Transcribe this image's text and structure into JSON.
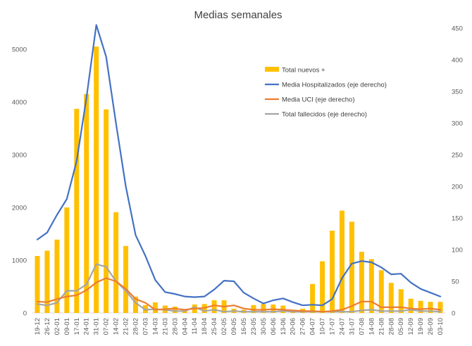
{
  "chart_data": {
    "type": "bar",
    "title": "Medias semanales",
    "xlabel": "",
    "ylabel": "",
    "categories": [
      "19-12",
      "26-12",
      "02-01",
      "09-01",
      "17-01",
      "24-01",
      "31-01",
      "07-02",
      "14-02",
      "21-02",
      "28-02",
      "07-03",
      "14-03",
      "21-03",
      "28-03",
      "04-04",
      "11-04",
      "18-04",
      "25-04",
      "02-05",
      "09-05",
      "16-05",
      "23-05",
      "30-05",
      "06-06",
      "13-06",
      "20-06",
      "27-06",
      "04-07",
      "10-07",
      "17-07",
      "24-07",
      "31-07",
      "07-08",
      "14-08",
      "21-08",
      "28-08",
      "05-09",
      "12-09",
      "19-09",
      "26-09",
      "03-10"
    ],
    "ylim": [
      0,
      5400
    ],
    "y2lim": [
      0,
      450
    ],
    "yticks": [
      "0",
      "1000",
      "2000",
      "3000",
      "4000",
      "5000"
    ],
    "y2ticks": [
      "0",
      "50",
      "100",
      "150",
      "200",
      "250",
      "300",
      "350",
      "400",
      "450"
    ],
    "grid": false,
    "legend_position": "top-right",
    "colors": {
      "bars": "#FFC000",
      "hosp": "#4472C4",
      "uci": "#ED7D31",
      "fall": "#A5A5A5",
      "axis": "#D9D9D9"
    },
    "series": [
      {
        "name": "Total nuevos +",
        "axis": "left",
        "kind": "bar",
        "values": [
          1080,
          1180,
          1390,
          2000,
          3870,
          4150,
          5050,
          3860,
          1910,
          1270,
          310,
          150,
          200,
          140,
          120,
          70,
          160,
          170,
          240,
          240,
          80,
          60,
          150,
          170,
          160,
          140,
          60,
          80,
          550,
          980,
          1560,
          1940,
          1730,
          1160,
          1020,
          810,
          570,
          450,
          270,
          230,
          210,
          210
        ]
      },
      {
        "name": "Media Hospitalizados (eje derecho)",
        "axis": "right",
        "kind": "line",
        "values": [
          116,
          127,
          155,
          180,
          240,
          340,
          455,
          405,
          300,
          200,
          123,
          90,
          52,
          33,
          30,
          26,
          25,
          26,
          37,
          51,
          50,
          32,
          23,
          15,
          20,
          23,
          17,
          12,
          13,
          12,
          22,
          55,
          78,
          82,
          80,
          72,
          61,
          62,
          48,
          38,
          32,
          26
        ]
      },
      {
        "name": "Media UCI (eje derecho)",
        "axis": "right",
        "kind": "line",
        "values": [
          18,
          17,
          22,
          26,
          28,
          36,
          48,
          55,
          50,
          38,
          22,
          16,
          5,
          6,
          7,
          5,
          7,
          8,
          12,
          10,
          12,
          7,
          5,
          5,
          6,
          5,
          4,
          3,
          3,
          2,
          3,
          5,
          11,
          18,
          18,
          9,
          9,
          9,
          7,
          6,
          7,
          5
        ]
      },
      {
        "name": "Total fallecidos (eje derecho)",
        "axis": "right",
        "kind": "line",
        "values": [
          14,
          12,
          16,
          35,
          35,
          45,
          77,
          73,
          50,
          35,
          16,
          5,
          6,
          5,
          3,
          3,
          9,
          3,
          5,
          2,
          3,
          2,
          2,
          2,
          2,
          3,
          2,
          2,
          2,
          2,
          2,
          2,
          2,
          4,
          5,
          3,
          3,
          3,
          5,
          3,
          3,
          2
        ]
      }
    ]
  }
}
